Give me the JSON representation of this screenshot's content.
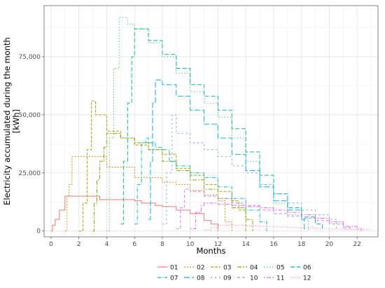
{
  "chart_data": {
    "type": "line",
    "xlabel": "Months",
    "ylabel_lines": [
      "Electricity accumulated during the month",
      "[kWh]"
    ],
    "xlim": [
      -0.5,
      23.5
    ],
    "ylim": [
      -2500,
      97000
    ],
    "x_ticks": [
      0,
      2,
      4,
      6,
      8,
      10,
      12,
      14,
      16,
      18,
      20,
      22
    ],
    "x_tick_labels": [
      "0",
      "2",
      "4",
      "6",
      "8",
      "10",
      "12",
      "14",
      "16",
      "18",
      "20",
      "22"
    ],
    "y_ticks": [
      0,
      25000,
      50000,
      75000
    ],
    "y_tick_labels": [
      "0",
      "25,000",
      "50,000",
      "75,000"
    ],
    "grid": true,
    "legend_position": "bottom",
    "series": [
      {
        "name": "01",
        "color": "#F8766D",
        "dash": "0",
        "points": [
          [
            0,
            0
          ],
          [
            0.1,
            2500
          ],
          [
            0.3,
            5000
          ],
          [
            0.6,
            9000
          ],
          [
            1,
            15000
          ],
          [
            3.3,
            15000
          ],
          [
            3.5,
            13500
          ],
          [
            6,
            13000
          ],
          [
            6.5,
            12000
          ],
          [
            7.5,
            11000
          ],
          [
            8,
            10500
          ],
          [
            9,
            9000
          ],
          [
            10,
            7500
          ],
          [
            11,
            4500
          ],
          [
            11.5,
            3000
          ],
          [
            12,
            0
          ]
        ]
      },
      {
        "name": "02",
        "color": "#DE8C00",
        "dash": "2,2",
        "points": [
          [
            1,
            0
          ],
          [
            1.15,
            15000
          ],
          [
            1.3,
            20000
          ],
          [
            1.5,
            32000
          ],
          [
            3.5,
            32000
          ],
          [
            4,
            27500
          ],
          [
            6,
            23000
          ],
          [
            8,
            21000
          ],
          [
            9,
            20000
          ],
          [
            10,
            17500
          ],
          [
            11,
            15500
          ],
          [
            12,
            13000
          ],
          [
            12.5,
            4000
          ],
          [
            13,
            0
          ]
        ]
      },
      {
        "name": "03",
        "color": "#B79F00",
        "dash": "4,2",
        "points": [
          [
            2,
            0
          ],
          [
            2.3,
            12000
          ],
          [
            2.6,
            35000
          ],
          [
            2.9,
            56000
          ],
          [
            3.2,
            50000
          ],
          [
            4,
            43000
          ],
          [
            5,
            40000
          ],
          [
            6,
            37000
          ],
          [
            7,
            35000
          ],
          [
            8,
            33000
          ],
          [
            9,
            27000
          ],
          [
            10,
            24000
          ],
          [
            11,
            20000
          ],
          [
            12,
            17000
          ],
          [
            13,
            13000
          ],
          [
            13.5,
            9000
          ],
          [
            14,
            0
          ]
        ]
      },
      {
        "name": "04",
        "color": "#7CAE00",
        "dash": "6,2,2,2",
        "points": [
          [
            3,
            0
          ],
          [
            3.1,
            12000
          ],
          [
            3.3,
            22000
          ],
          [
            3.5,
            30000
          ],
          [
            3.8,
            36000
          ],
          [
            4,
            42000
          ],
          [
            5,
            40000
          ],
          [
            6,
            38000
          ],
          [
            7,
            35000
          ],
          [
            8,
            30000
          ],
          [
            9,
            26000
          ],
          [
            10,
            22000
          ],
          [
            11,
            18000
          ],
          [
            12,
            14000
          ],
          [
            13,
            10000
          ],
          [
            14,
            5000
          ],
          [
            14.5,
            0
          ]
        ]
      },
      {
        "name": "05",
        "color": "#00BA38",
        "dash": "1,3",
        "points": [
          [
            4,
            0
          ],
          [
            4.2,
            40000
          ],
          [
            4.5,
            70000
          ],
          [
            4.9,
            92000
          ],
          [
            5.5,
            89000
          ],
          [
            6,
            87000
          ],
          [
            7,
            81000
          ],
          [
            8,
            75000
          ],
          [
            9,
            68000
          ],
          [
            10,
            60000
          ],
          [
            11,
            55000
          ],
          [
            12,
            49000
          ],
          [
            13,
            40000
          ],
          [
            14,
            30000
          ],
          [
            15,
            20000
          ],
          [
            16,
            12000
          ],
          [
            17,
            7000
          ],
          [
            18,
            5000
          ],
          [
            18.5,
            0
          ]
        ]
      },
      {
        "name": "06",
        "color": "#00C08B",
        "dash": "6,3",
        "points": [
          [
            5,
            3000
          ],
          [
            5.2,
            30000
          ],
          [
            5.5,
            55000
          ],
          [
            5.8,
            75000
          ],
          [
            6,
            87000
          ],
          [
            7,
            82000
          ],
          [
            8,
            76000
          ],
          [
            9,
            70000
          ],
          [
            10,
            63000
          ],
          [
            11,
            58000
          ],
          [
            12,
            52000
          ],
          [
            13,
            44000
          ],
          [
            14,
            34000
          ],
          [
            15,
            24000
          ],
          [
            16,
            16000
          ],
          [
            17,
            10000
          ],
          [
            18,
            6000
          ],
          [
            19,
            3000
          ],
          [
            19.5,
            0
          ]
        ]
      },
      {
        "name": "07",
        "color": "#00BFC4",
        "dash": "5,2,1,2",
        "points": [
          [
            6,
            3000
          ],
          [
            6.2,
            20000
          ],
          [
            6.5,
            38000
          ],
          [
            6.8,
            40000
          ],
          [
            7,
            38000
          ],
          [
            7.5,
            36000
          ],
          [
            8,
            35000
          ],
          [
            8.5,
            30000
          ],
          [
            9,
            28000
          ],
          [
            10,
            25000
          ],
          [
            11,
            23000
          ],
          [
            12,
            19000
          ],
          [
            13,
            14000
          ],
          [
            14,
            9000
          ],
          [
            15,
            4000
          ],
          [
            15.5,
            0
          ]
        ]
      },
      {
        "name": "08",
        "color": "#00B4F0",
        "dash": "8,3",
        "points": [
          [
            7,
            5000
          ],
          [
            7.15,
            30000
          ],
          [
            7.3,
            55000
          ],
          [
            7.5,
            65000
          ],
          [
            8,
            63000
          ],
          [
            9,
            58000
          ],
          [
            10,
            52000
          ],
          [
            11,
            46000
          ],
          [
            12,
            40000
          ],
          [
            13,
            33000
          ],
          [
            14,
            26000
          ],
          [
            15,
            19000
          ],
          [
            16,
            13000
          ],
          [
            17,
            9000
          ],
          [
            18,
            5000
          ],
          [
            18.2,
            0
          ]
        ]
      },
      {
        "name": "09",
        "color": "#619CFF",
        "dash": "2,4",
        "points": [
          [
            8,
            3000
          ],
          [
            8.3,
            25000
          ],
          [
            8.7,
            50000
          ],
          [
            9,
            42000
          ],
          [
            10,
            38000
          ],
          [
            11,
            35000
          ],
          [
            12,
            32000
          ],
          [
            13,
            28000
          ],
          [
            14,
            25000
          ],
          [
            15,
            20000
          ],
          [
            16,
            16000
          ],
          [
            17,
            12000
          ],
          [
            18,
            9000
          ],
          [
            19,
            7000
          ],
          [
            20,
            5000
          ],
          [
            20.5,
            0
          ]
        ]
      },
      {
        "name": "10",
        "color": "#C77CFF",
        "dash": "4,3",
        "points": [
          [
            9,
            1000
          ],
          [
            9.3,
            10000
          ],
          [
            9.6,
            18000
          ],
          [
            10,
            17000
          ],
          [
            11,
            15000
          ],
          [
            12,
            14000
          ],
          [
            13,
            12000
          ],
          [
            14,
            11000
          ],
          [
            15,
            9000
          ],
          [
            16,
            7500
          ],
          [
            17,
            6500
          ],
          [
            18,
            5500
          ],
          [
            19,
            4500
          ],
          [
            20,
            3000
          ],
          [
            21,
            1500
          ],
          [
            21.5,
            0
          ]
        ]
      },
      {
        "name": "11",
        "color": "#F564E3",
        "dash": "2,2,6,2",
        "points": [
          [
            10,
            1000
          ],
          [
            10.4,
            8000
          ],
          [
            10.8,
            11000
          ],
          [
            11,
            12000
          ],
          [
            12,
            11500
          ],
          [
            13,
            11000
          ],
          [
            14,
            10500
          ],
          [
            15,
            10000
          ],
          [
            16,
            9000
          ],
          [
            17,
            8000
          ],
          [
            18,
            7000
          ],
          [
            19,
            5500
          ],
          [
            20,
            4000
          ],
          [
            21,
            2000
          ],
          [
            22,
            1000
          ],
          [
            22.3,
            0
          ]
        ]
      },
      {
        "name": "12",
        "color": "#FF64B0",
        "dash": "1,2",
        "points": [
          [
            11,
            500
          ],
          [
            11.5,
            1500
          ],
          [
            12,
            2500
          ],
          [
            13,
            2500
          ],
          [
            14,
            2200
          ],
          [
            15,
            2000
          ],
          [
            16,
            1800
          ],
          [
            17,
            1500
          ],
          [
            18,
            1300
          ],
          [
            19,
            1100
          ],
          [
            20,
            900
          ],
          [
            21,
            700
          ],
          [
            22,
            600
          ],
          [
            23,
            500
          ]
        ]
      }
    ]
  }
}
